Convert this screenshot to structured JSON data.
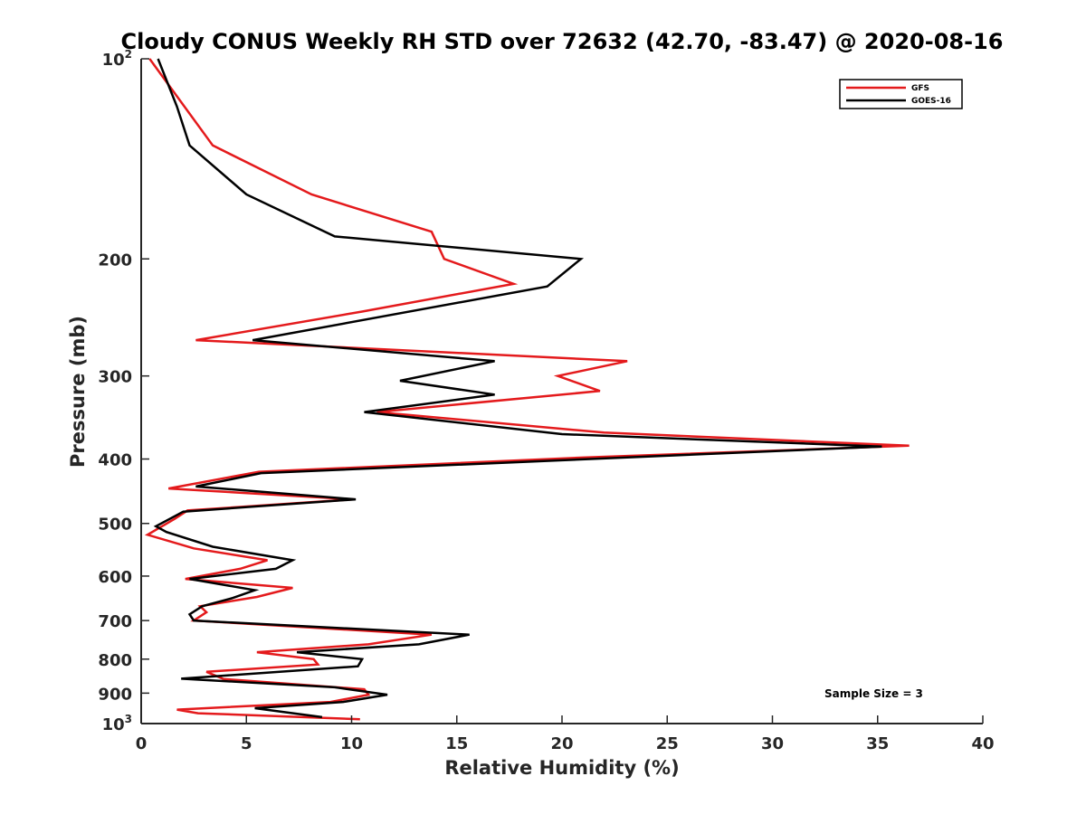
{
  "chart_data": {
    "type": "line",
    "title": "Cloudy CONUS Weekly RH STD over 72632 (42.70, -83.47) @ 2020-08-16",
    "xlabel": "Relative Humidity (%)",
    "ylabel": "Pressure (mb)",
    "xlim": [
      0,
      40
    ],
    "ylim": [
      100,
      1000
    ],
    "y_scale": "log",
    "y_reversed": true,
    "grid": false,
    "legend_position": "top-right",
    "xticks": [
      0,
      5,
      10,
      15,
      20,
      25,
      30,
      35,
      40
    ],
    "xtick_labels": [
      "0",
      "5",
      "10",
      "15",
      "20",
      "25",
      "30",
      "35",
      "40"
    ],
    "yticks": [
      100,
      200,
      300,
      400,
      500,
      600,
      700,
      800,
      900,
      1000
    ],
    "ytick_labels": [
      {
        "base": "10",
        "sup": "2"
      },
      {
        "base": "200"
      },
      {
        "base": "300"
      },
      {
        "base": "400"
      },
      {
        "base": "500"
      },
      {
        "base": "600"
      },
      {
        "base": "700"
      },
      {
        "base": "800"
      },
      {
        "base": "900"
      },
      {
        "base": "10",
        "sup": "3"
      }
    ],
    "annotation": "Sample Size = 3",
    "series": [
      {
        "name": "GFS",
        "color": "#e41a1c",
        "points": [
          [
            0.4,
            100
          ],
          [
            3.4,
            135
          ],
          [
            8.1,
            160
          ],
          [
            13.8,
            182
          ],
          [
            14.4,
            200
          ],
          [
            17.7,
            218
          ],
          [
            10.5,
            240
          ],
          [
            2.6,
            265
          ],
          [
            23.1,
            285
          ],
          [
            19.8,
            300
          ],
          [
            21.8,
            316
          ],
          [
            11.2,
            340
          ],
          [
            22.0,
            365
          ],
          [
            36.5,
            382
          ],
          [
            21.0,
            398
          ],
          [
            5.6,
            418
          ],
          [
            1.3,
            443
          ],
          [
            10.1,
            460
          ],
          [
            2.2,
            478
          ],
          [
            1.6,
            492
          ],
          [
            0.3,
            520
          ],
          [
            2.5,
            545
          ],
          [
            6.0,
            568
          ],
          [
            4.7,
            585
          ],
          [
            2.1,
            606
          ],
          [
            7.2,
            625
          ],
          [
            5.5,
            645
          ],
          [
            2.8,
            666
          ],
          [
            3.1,
            680
          ],
          [
            2.5,
            700
          ],
          [
            13.8,
            735
          ],
          [
            10.8,
            760
          ],
          [
            5.5,
            781
          ],
          [
            8.2,
            800
          ],
          [
            8.4,
            815
          ],
          [
            3.1,
            836
          ],
          [
            3.9,
            857
          ],
          [
            10.6,
            888
          ],
          [
            10.8,
            905
          ],
          [
            9.0,
            928
          ],
          [
            1.7,
            953
          ],
          [
            2.7,
            965
          ],
          [
            10.4,
            985
          ]
        ]
      },
      {
        "name": "GOES-16",
        "color": "#000000",
        "points": [
          [
            0.8,
            100
          ],
          [
            1.7,
            118
          ],
          [
            2.3,
            135
          ],
          [
            5.0,
            160
          ],
          [
            9.2,
            185
          ],
          [
            20.9,
            200
          ],
          [
            19.3,
            220
          ],
          [
            5.3,
            265
          ],
          [
            16.8,
            285
          ],
          [
            12.3,
            305
          ],
          [
            16.8,
            320
          ],
          [
            10.6,
            340
          ],
          [
            20.0,
            367
          ],
          [
            35.2,
            383
          ],
          [
            5.7,
            420
          ],
          [
            2.6,
            440
          ],
          [
            10.2,
            460
          ],
          [
            2.0,
            480
          ],
          [
            0.7,
            505
          ],
          [
            1.2,
            515
          ],
          [
            3.4,
            542
          ],
          [
            7.2,
            568
          ],
          [
            6.4,
            585
          ],
          [
            2.3,
            606
          ],
          [
            5.4,
            630
          ],
          [
            4.3,
            648
          ],
          [
            2.9,
            666
          ],
          [
            2.3,
            685
          ],
          [
            2.5,
            700
          ],
          [
            15.6,
            735
          ],
          [
            13.2,
            760
          ],
          [
            7.4,
            781
          ],
          [
            10.5,
            800
          ],
          [
            10.3,
            820
          ],
          [
            1.9,
            856
          ],
          [
            9.2,
            882
          ],
          [
            11.7,
            905
          ],
          [
            9.6,
            928
          ],
          [
            5.4,
            948
          ],
          [
            8.6,
            978
          ]
        ]
      }
    ]
  }
}
